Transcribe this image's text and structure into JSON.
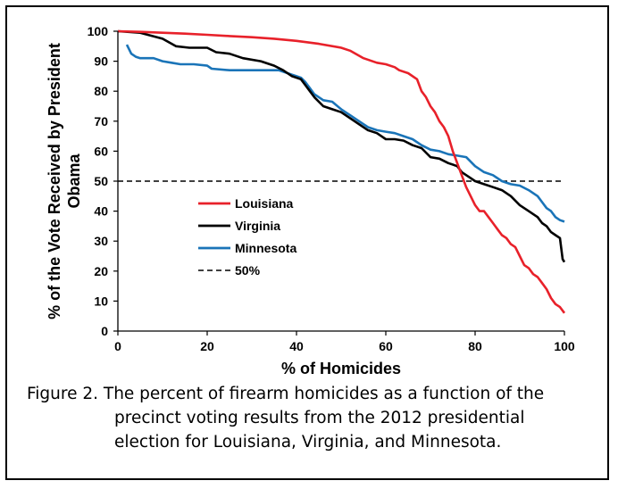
{
  "chart_data": {
    "type": "line",
    "xlabel": "% of Homicides",
    "ylabel_lines": [
      "% of the Vote Received by President",
      "Obama"
    ],
    "xlim": [
      0,
      100
    ],
    "ylim": [
      0,
      100
    ],
    "x_ticks": [
      0,
      20,
      40,
      60,
      80,
      100
    ],
    "y_ticks": [
      0,
      10,
      20,
      30,
      40,
      50,
      60,
      70,
      80,
      90,
      100
    ],
    "grid": false,
    "legend_position": "center-left",
    "series": [
      {
        "name": "Louisiana",
        "color": "#e8212a",
        "style": "solid",
        "points": [
          [
            0,
            100
          ],
          [
            5,
            99.8
          ],
          [
            10,
            99.5
          ],
          [
            15,
            99.2
          ],
          [
            20,
            98.8
          ],
          [
            25,
            98.4
          ],
          [
            30,
            98
          ],
          [
            35,
            97.5
          ],
          [
            40,
            96.8
          ],
          [
            45,
            95.8
          ],
          [
            50,
            94.5
          ],
          [
            52,
            93.5
          ],
          [
            55,
            91
          ],
          [
            58,
            89.5
          ],
          [
            60,
            89
          ],
          [
            62,
            88
          ],
          [
            63,
            87
          ],
          [
            65,
            86
          ],
          [
            67,
            84
          ],
          [
            68,
            80
          ],
          [
            69,
            78
          ],
          [
            70,
            75
          ],
          [
            71,
            73
          ],
          [
            72,
            70
          ],
          [
            73,
            68
          ],
          [
            74,
            65
          ],
          [
            75,
            60
          ],
          [
            76,
            56
          ],
          [
            77,
            52
          ],
          [
            78,
            48
          ],
          [
            79,
            45
          ],
          [
            80,
            42
          ],
          [
            81,
            40
          ],
          [
            82,
            40
          ],
          [
            83,
            38
          ],
          [
            84,
            36
          ],
          [
            85,
            34
          ],
          [
            86,
            32
          ],
          [
            87,
            31
          ],
          [
            88,
            29
          ],
          [
            89,
            28
          ],
          [
            90,
            25
          ],
          [
            91,
            22
          ],
          [
            92,
            21
          ],
          [
            93,
            19
          ],
          [
            94,
            18
          ],
          [
            95,
            16
          ],
          [
            96,
            14
          ],
          [
            97,
            11
          ],
          [
            98,
            9
          ],
          [
            99,
            8
          ],
          [
            100,
            6
          ]
        ]
      },
      {
        "name": "Virginia",
        "color": "#000000",
        "style": "solid",
        "points": [
          [
            0,
            100
          ],
          [
            5,
            99.5
          ],
          [
            10,
            97.5
          ],
          [
            13,
            95
          ],
          [
            16,
            94.5
          ],
          [
            20,
            94.5
          ],
          [
            22,
            93
          ],
          [
            25,
            92.5
          ],
          [
            28,
            91
          ],
          [
            32,
            90
          ],
          [
            35,
            88.5
          ],
          [
            37,
            87
          ],
          [
            39,
            85
          ],
          [
            41,
            84
          ],
          [
            42,
            82
          ],
          [
            43,
            80
          ],
          [
            44,
            78
          ],
          [
            46,
            75
          ],
          [
            48,
            74
          ],
          [
            50,
            73
          ],
          [
            52,
            71
          ],
          [
            54,
            69
          ],
          [
            56,
            67
          ],
          [
            58,
            66
          ],
          [
            59,
            65
          ],
          [
            60,
            64
          ],
          [
            62,
            64
          ],
          [
            64,
            63.5
          ],
          [
            66,
            62
          ],
          [
            68,
            61
          ],
          [
            70,
            58
          ],
          [
            72,
            57.5
          ],
          [
            74,
            56
          ],
          [
            76,
            55
          ],
          [
            77,
            53
          ],
          [
            79,
            51
          ],
          [
            80,
            50
          ],
          [
            82,
            49
          ],
          [
            84,
            48
          ],
          [
            86,
            47
          ],
          [
            88,
            45
          ],
          [
            90,
            42
          ],
          [
            92,
            40
          ],
          [
            94,
            38
          ],
          [
            95,
            36
          ],
          [
            96,
            35
          ],
          [
            97,
            33
          ],
          [
            98,
            32
          ],
          [
            99,
            31
          ],
          [
            99.6,
            24
          ],
          [
            100,
            23
          ]
        ]
      },
      {
        "name": "Minnesota",
        "color": "#1a74b8",
        "style": "solid",
        "points": [
          [
            2,
            95.5
          ],
          [
            3,
            92.5
          ],
          [
            4,
            91.5
          ],
          [
            5,
            91
          ],
          [
            8,
            91
          ],
          [
            10,
            90
          ],
          [
            12,
            89.5
          ],
          [
            14,
            89
          ],
          [
            17,
            89
          ],
          [
            20,
            88.5
          ],
          [
            21,
            87.5
          ],
          [
            25,
            87
          ],
          [
            30,
            87
          ],
          [
            36,
            87
          ],
          [
            38,
            86
          ],
          [
            39,
            85.5
          ],
          [
            40,
            85
          ],
          [
            41,
            84.5
          ],
          [
            42,
            83
          ],
          [
            43,
            81
          ],
          [
            44,
            79
          ],
          [
            46,
            77
          ],
          [
            48,
            76.5
          ],
          [
            50,
            74
          ],
          [
            52,
            72
          ],
          [
            54,
            70
          ],
          [
            56,
            68
          ],
          [
            58,
            67
          ],
          [
            60,
            66.5
          ],
          [
            62,
            66
          ],
          [
            64,
            65
          ],
          [
            66,
            64
          ],
          [
            68,
            62
          ],
          [
            70,
            60.5
          ],
          [
            72,
            60
          ],
          [
            74,
            59
          ],
          [
            76,
            58.5
          ],
          [
            78,
            58
          ],
          [
            80,
            55
          ],
          [
            82,
            53
          ],
          [
            84,
            52
          ],
          [
            86,
            50
          ],
          [
            88,
            49
          ],
          [
            90,
            48.5
          ],
          [
            92,
            47
          ],
          [
            94,
            45
          ],
          [
            95,
            43
          ],
          [
            96,
            41
          ],
          [
            97,
            40
          ],
          [
            98,
            38
          ],
          [
            99,
            37
          ],
          [
            100,
            36.5
          ]
        ]
      },
      {
        "name": "50%",
        "color": "#000000",
        "style": "dashed",
        "points": [
          [
            0,
            50
          ],
          [
            100,
            50
          ]
        ]
      }
    ]
  },
  "caption": {
    "line1": "Figure 2. The percent of firearm homicides as a function of the",
    "line2": "precinct voting results from the 2012 presidential",
    "line3": "election for Louisiana, Virginia, and Minnesota."
  }
}
